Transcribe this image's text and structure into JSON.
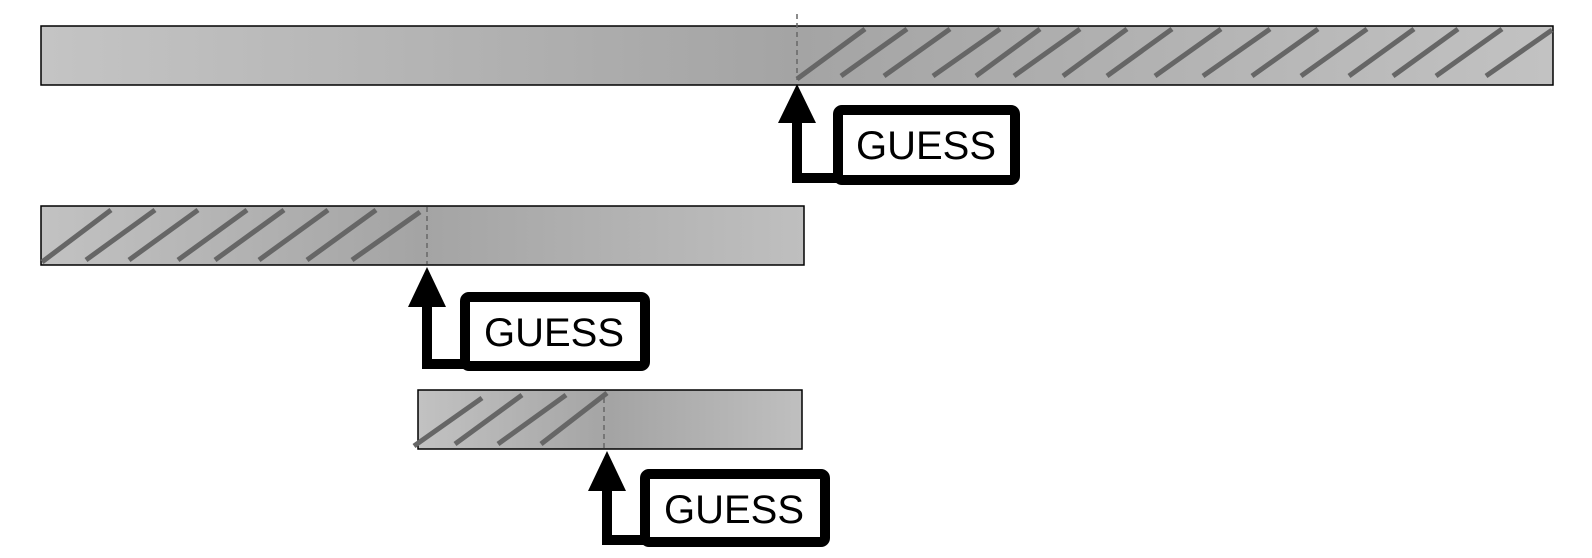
{
  "colors": {
    "bar_light": "#c6c6c6",
    "bar_dark": "#a3a3a3",
    "hatch": "#666666",
    "outline": "#000000",
    "marker": "#666666"
  },
  "icons": [
    "arrow-up-icon"
  ],
  "rows": [
    {
      "label": "GUESS",
      "hatch_side": "right"
    },
    {
      "label": "GUESS",
      "hatch_side": "left"
    },
    {
      "label": "GUESS",
      "hatch_side": "left"
    }
  ]
}
